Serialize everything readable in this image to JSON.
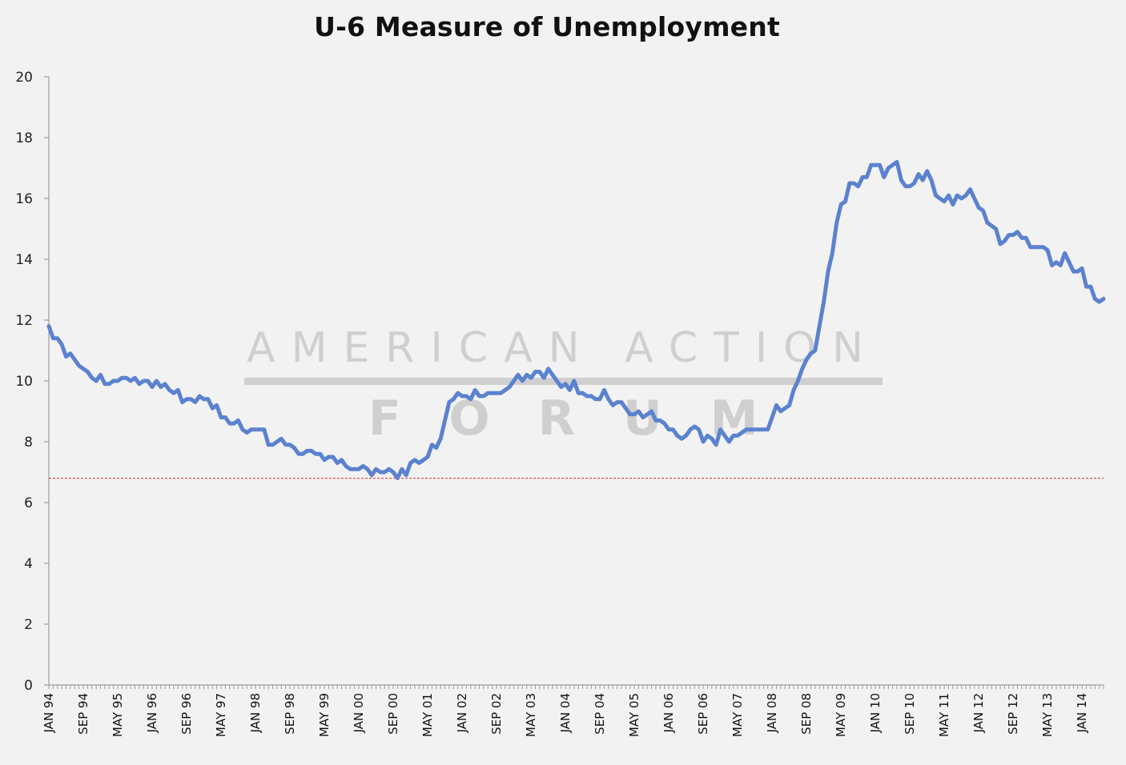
{
  "chart_data": {
    "type": "line",
    "title": "U-6 Measure of Unemployment",
    "xlabel": "",
    "ylabel": "",
    "ylim": [
      0,
      20
    ],
    "yticks": [
      0,
      2,
      4,
      6,
      8,
      10,
      12,
      14,
      16,
      18,
      20
    ],
    "grid": false,
    "legend": "none",
    "x_start": "JAN 94",
    "x_end": "APR 14",
    "tick_labels": [
      "JAN 94",
      "SEP 94",
      "MAY 95",
      "JAN 96",
      "SEP 96",
      "MAY 97",
      "JAN 98",
      "SEP 98",
      "MAY 99",
      "JAN 00",
      "SEP 00",
      "MAY 01",
      "JAN 02",
      "SEP 02",
      "MAY 03",
      "JAN 04",
      "SEP 04",
      "MAY 05",
      "JAN 06",
      "SEP 06",
      "MAY 07",
      "JAN 08",
      "SEP 08",
      "MAY 09",
      "JAN 10",
      "SEP 10",
      "MAY 11",
      "JAN 12",
      "SEP 12",
      "MAY 13",
      "JAN 14"
    ],
    "reference_line": {
      "y": 6.8,
      "color": "#e05050",
      "style": "dashed"
    },
    "series": [
      {
        "color": "#5b82cf",
        "values": [
          11.8,
          11.4,
          11.4,
          11.2,
          10.8,
          10.9,
          10.7,
          10.5,
          10.4,
          10.3,
          10.1,
          10.0,
          10.2,
          9.9,
          9.9,
          10.0,
          10.0,
          10.1,
          10.1,
          10.0,
          10.1,
          9.9,
          10.0,
          10.0,
          9.8,
          10.0,
          9.8,
          9.9,
          9.7,
          9.6,
          9.7,
          9.3,
          9.4,
          9.4,
          9.3,
          9.5,
          9.4,
          9.4,
          9.1,
          9.2,
          8.8,
          8.8,
          8.6,
          8.6,
          8.7,
          8.4,
          8.3,
          8.4,
          8.4,
          8.4,
          8.4,
          7.9,
          7.9,
          8.0,
          8.1,
          7.9,
          7.9,
          7.8,
          7.6,
          7.6,
          7.7,
          7.7,
          7.6,
          7.6,
          7.4,
          7.5,
          7.5,
          7.3,
          7.4,
          7.2,
          7.1,
          7.1,
          7.1,
          7.2,
          7.1,
          6.9,
          7.1,
          7.0,
          7.0,
          7.1,
          7.0,
          6.8,
          7.1,
          6.9,
          7.3,
          7.4,
          7.3,
          7.4,
          7.5,
          7.9,
          7.8,
          8.1,
          8.7,
          9.3,
          9.4,
          9.6,
          9.5,
          9.5,
          9.4,
          9.7,
          9.5,
          9.5,
          9.6,
          9.6,
          9.6,
          9.6,
          9.7,
          9.8,
          10.0,
          10.2,
          10.0,
          10.2,
          10.1,
          10.3,
          10.3,
          10.1,
          10.4,
          10.2,
          10.0,
          9.8,
          9.9,
          9.7,
          10.0,
          9.6,
          9.6,
          9.5,
          9.5,
          9.4,
          9.4,
          9.7,
          9.4,
          9.2,
          9.3,
          9.3,
          9.1,
          8.9,
          8.9,
          9.0,
          8.8,
          8.9,
          9.0,
          8.7,
          8.7,
          8.6,
          8.4,
          8.4,
          8.2,
          8.1,
          8.2,
          8.4,
          8.5,
          8.4,
          8.0,
          8.2,
          8.1,
          7.9,
          8.4,
          8.2,
          8.0,
          8.2,
          8.2,
          8.3,
          8.4,
          8.4,
          8.4,
          8.4,
          8.4,
          8.4,
          8.8,
          9.2,
          9.0,
          9.1,
          9.2,
          9.7,
          10.0,
          10.4,
          10.7,
          10.9,
          11.0,
          11.8,
          12.6,
          13.6,
          14.2,
          15.2,
          15.8,
          15.9,
          16.5,
          16.5,
          16.4,
          16.7,
          16.7,
          17.1,
          17.1,
          17.1,
          16.7,
          17.0,
          17.1,
          17.2,
          16.6,
          16.4,
          16.4,
          16.5,
          16.8,
          16.6,
          16.9,
          16.6,
          16.1,
          16.0,
          15.9,
          16.1,
          15.8,
          16.1,
          16.0,
          16.1,
          16.3,
          16.0,
          15.7,
          15.6,
          15.2,
          15.1,
          15.0,
          14.5,
          14.6,
          14.8,
          14.8,
          14.9,
          14.7,
          14.7,
          14.4,
          14.4,
          14.4,
          14.4,
          14.3,
          13.8,
          13.9,
          13.8,
          14.2,
          13.9,
          13.6,
          13.6,
          13.7,
          13.1,
          13.1,
          12.7,
          12.6,
          12.7
        ]
      }
    ]
  },
  "watermark": {
    "line1": "AMERICAN ACTION",
    "line2": "FORUM"
  }
}
